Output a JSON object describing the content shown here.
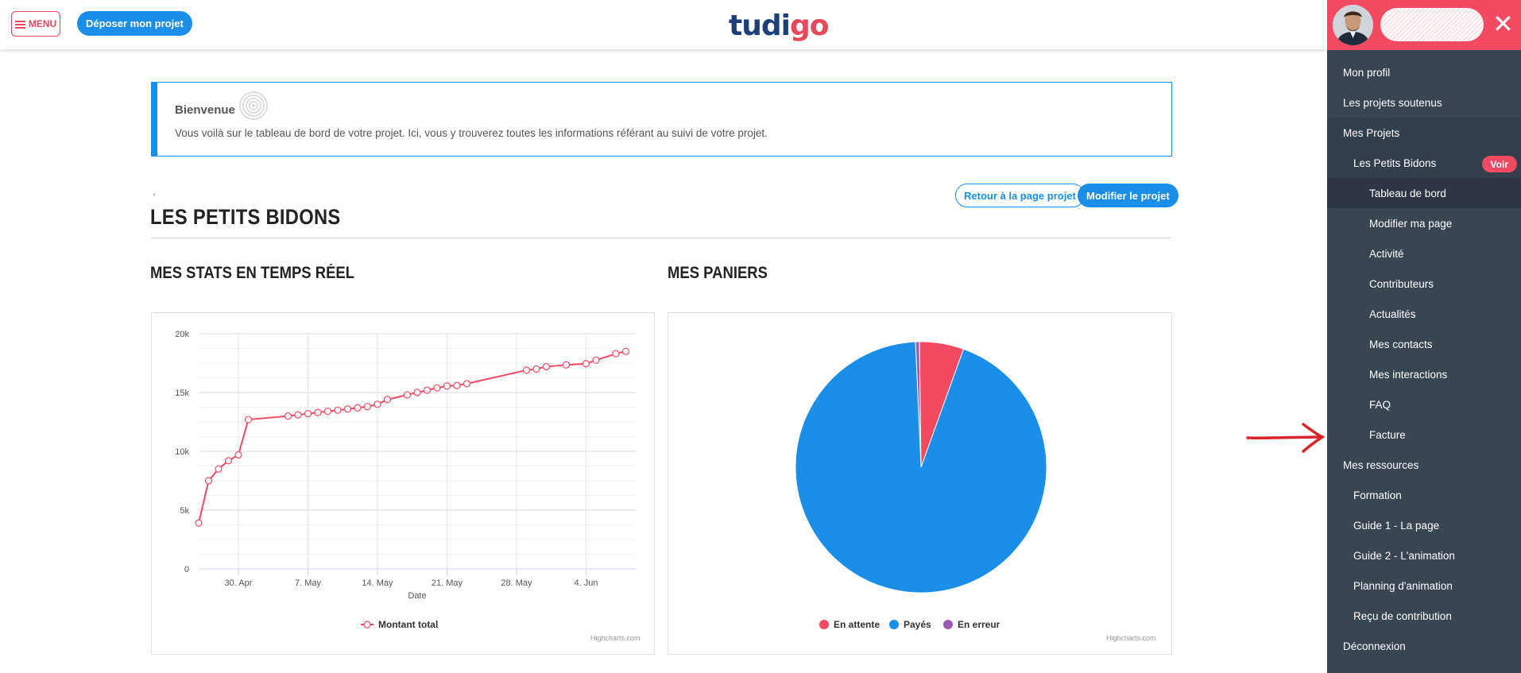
{
  "header": {
    "menu_label": "MENU",
    "deposit_label": "Déposer mon projet",
    "logo_main": "tudi",
    "logo_accent": "go"
  },
  "welcome": {
    "title": "Bienvenue",
    "text": "Vous voilà sur le tableau de bord de votre projet. Ici, vous y trouverez toutes les informations référant au suivi de votre projet."
  },
  "project": {
    "tick": "'",
    "title": "LES PETITS BIDONS",
    "back_label": "Retour à la page projet",
    "edit_label": "Modifier le projet"
  },
  "stats": {
    "title": "MES STATS EN TEMPS RÉEL",
    "credits": "Highcharts.com"
  },
  "baskets": {
    "title": "MES PANIERS",
    "credits": "Highcharts.com"
  },
  "colors": {
    "accent_blue": "#1a8ee9",
    "accent_red": "#f24a62",
    "sidebar_bg": "#3a4552",
    "purple": "#9b59b6"
  },
  "chart_data": [
    {
      "type": "line",
      "title": "",
      "xlabel": "Date",
      "ylabel": "",
      "x_tick_labels": [
        "30. Apr",
        "7. May",
        "14. May",
        "21. May",
        "28. May",
        "4. Jun"
      ],
      "y_tick_labels": [
        "0",
        "5k",
        "10k",
        "15k",
        "20k"
      ],
      "ylim": [
        0,
        20000
      ],
      "xlim_days": "2024-04-26 to 2024-06-09",
      "legend": "bottom",
      "series": [
        {
          "name": "Montant total",
          "color": "#f24a62",
          "x": [
            "2024-04-26",
            "2024-04-27",
            "2024-04-28",
            "2024-04-29",
            "2024-04-30",
            "2024-05-01",
            "2024-05-05",
            "2024-05-06",
            "2024-05-07",
            "2024-05-08",
            "2024-05-09",
            "2024-05-10",
            "2024-05-11",
            "2024-05-12",
            "2024-05-13",
            "2024-05-14",
            "2024-05-15",
            "2024-05-17",
            "2024-05-18",
            "2024-05-19",
            "2024-05-20",
            "2024-05-21",
            "2024-05-22",
            "2024-05-23",
            "2024-05-29",
            "2024-05-30",
            "2024-05-31",
            "2024-06-02",
            "2024-06-04",
            "2024-06-05",
            "2024-06-07",
            "2024-06-08"
          ],
          "values": [
            3900,
            7500,
            8500,
            9200,
            9700,
            12700,
            13000,
            13100,
            13200,
            13300,
            13400,
            13500,
            13600,
            13700,
            13800,
            14000,
            14400,
            14800,
            15000,
            15200,
            15400,
            15550,
            15600,
            15750,
            16900,
            17000,
            17200,
            17350,
            17450,
            17750,
            18300,
            18500
          ]
        }
      ]
    },
    {
      "type": "pie",
      "title": "",
      "legend": "bottom",
      "series": [
        {
          "name": "En attente",
          "value": 5.7,
          "color": "#f24a62"
        },
        {
          "name": "Payés",
          "value": 93.8,
          "color": "#1a8ee9"
        },
        {
          "name": "En erreur",
          "value": 0.5,
          "color": "#9b59b6"
        }
      ]
    }
  ],
  "sidebar": {
    "close_label": "✕",
    "items": [
      {
        "label": "Mon profil",
        "level": 1
      },
      {
        "label": "Les projets soutenus",
        "level": 1
      },
      {
        "label": "Mes Projets",
        "level": 1,
        "shaded": true
      },
      {
        "label": "Les Petits Bidons",
        "level": 2,
        "shaded": true,
        "badge": "Voir"
      },
      {
        "label": "Tableau de bord",
        "level": 3,
        "active": true
      },
      {
        "label": "Modifier ma page",
        "level": 3
      },
      {
        "label": "Activité",
        "level": 3
      },
      {
        "label": "Contributeurs",
        "level": 3
      },
      {
        "label": "Actualités",
        "level": 3
      },
      {
        "label": "Mes contacts",
        "level": 3
      },
      {
        "label": "Mes interactions",
        "level": 3
      },
      {
        "label": "FAQ",
        "level": 3
      },
      {
        "label": "Facture",
        "level": 3
      },
      {
        "label": "Mes ressources",
        "level": 1
      },
      {
        "label": "Formation",
        "level": 2
      },
      {
        "label": "Guide 1 - La page",
        "level": 2
      },
      {
        "label": "Guide 2 - L'animation",
        "level": 2
      },
      {
        "label": "Planning d'animation",
        "level": 2
      },
      {
        "label": "Reçu de contribution",
        "level": 2
      },
      {
        "label": "Déconnexion",
        "level": 1
      }
    ]
  }
}
